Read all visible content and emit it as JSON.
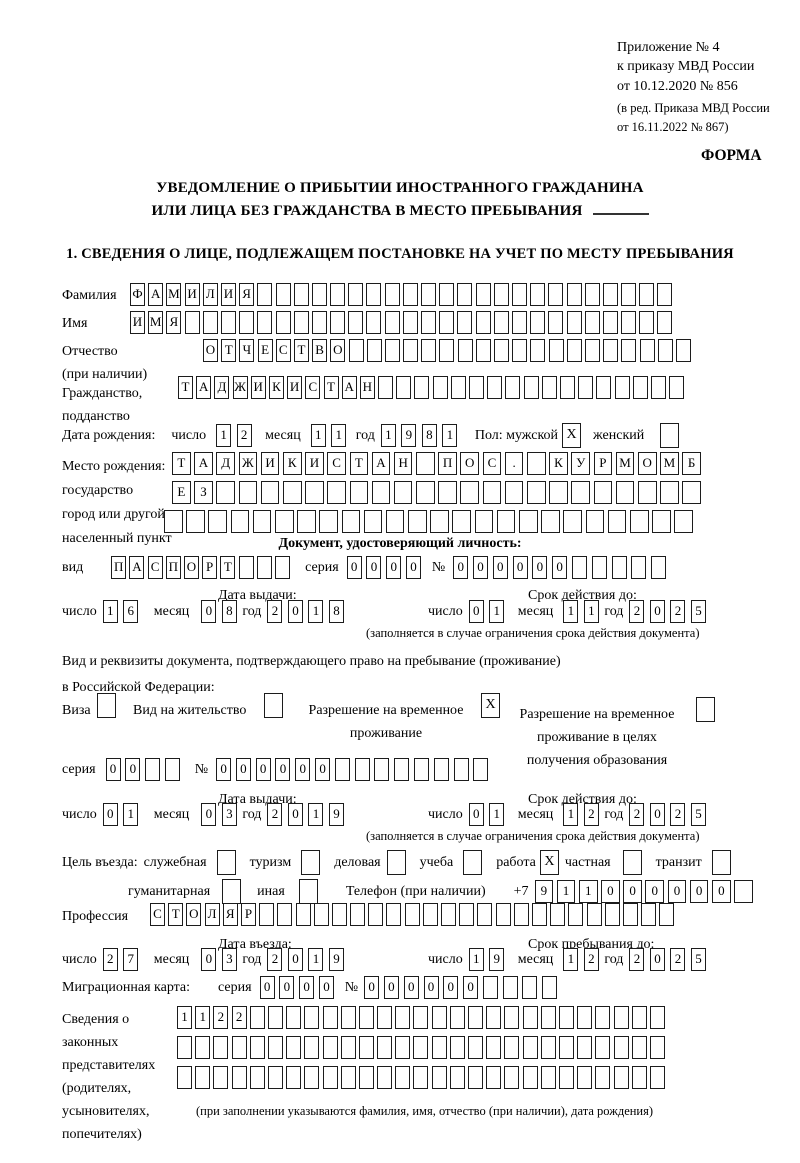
{
  "header": {
    "ref_lines": [
      "Приложение № 4",
      "к приказу МВД России",
      "от 10.12.2020 № 856"
    ],
    "ref_lines_small": [
      "(в ред. Приказа МВД России",
      "от 16.11.2022 № 867)"
    ],
    "form_word": "ФОРМА",
    "title_line1": "УВЕДОМЛЕНИЕ О ПРИБЫТИИ ИНОСТРАННОГО ГРАЖДАНИНА",
    "title_line2": "ИЛИ ЛИЦА БЕЗ ГРАЖДАНСТВА В МЕСТО ПРЕБЫВАНИЯ",
    "section1_title": "1. СВЕДЕНИЯ О ЛИЦЕ, ПОДЛЕЖАЩЕМ ПОСТАНОВКЕ НА УЧЕТ ПО МЕСТУ ПРЕБЫВАНИЯ"
  },
  "shared": {
    "day": "число",
    "month": "месяц",
    "year": "год",
    "series": "серия",
    "number": "№",
    "issue_title": "Дата выдачи:",
    "valid_title": "Срок действия до:",
    "validity_note": "(заполняется в случае ограничения срока действия документа)"
  },
  "person": {
    "surname": {
      "label": "Фамилия",
      "value": "ФАМИЛИЯ",
      "count": 30
    },
    "name": {
      "label": "Имя",
      "value": "ИМЯ",
      "count": 30
    },
    "patronymic": {
      "label1": "Отчество",
      "label2": "(при наличии)",
      "value": "ОТЧЕСТВО",
      "count": 27
    },
    "citizenship": {
      "label1": "Гражданство,",
      "label2": "подданство",
      "value": "ТАДЖИКИСТАН",
      "count": 28
    },
    "birth_date": {
      "label": "Дата рождения:",
      "day": "12",
      "month": "11",
      "year": "1981"
    },
    "sex": {
      "label": "Пол: мужской",
      "male_mark": "X",
      "female_label": "женский",
      "female_mark": ""
    },
    "birth_place": {
      "label1": "Место рождения:",
      "label2": "государство",
      "label3": "город или другой",
      "label4": "населенный пункт",
      "row1": {
        "value": "ТАДЖИКИСТАН ПОС. КУРМОМБ",
        "count": 24
      },
      "row2": {
        "value": "ЕЗ",
        "count": 24
      },
      "row3": {
        "value": "",
        "count": 24
      }
    }
  },
  "identity_doc": {
    "section_title": "Документ, удостоверяющий личность:",
    "kind_label": "вид",
    "kind": {
      "value": "ПАСПОРТ",
      "count": 10
    },
    "series": {
      "value": "0000",
      "count": 4
    },
    "number": {
      "value": "000000",
      "count": 11
    },
    "issue": {
      "day": "16",
      "month": "08",
      "year": "2018"
    },
    "valid": {
      "day": "01",
      "month": "11",
      "year": "2025"
    }
  },
  "residence_doc": {
    "intro_line1": "Вид и реквизиты документа, подтверждающего право на пребывание (проживание)",
    "intro_line2": "в Российской Федерации:",
    "options": [
      {
        "label": "Виза",
        "mark": ""
      },
      {
        "label": "Вид на жительство",
        "mark": ""
      },
      {
        "label": "Разрешение на временное проживание",
        "mark": "X"
      },
      {
        "label": "Разрешение на временное проживание в целях получения образования",
        "mark": ""
      }
    ],
    "series": {
      "value": "00",
      "count": 4
    },
    "number": {
      "value": "000000",
      "count": 14
    },
    "issue": {
      "day": "01",
      "month": "03",
      "year": "2019"
    },
    "valid": {
      "day": "01",
      "month": "12",
      "year": "2025"
    }
  },
  "entry_purpose": {
    "label": "Цель въезда:",
    "options": [
      {
        "label": "служебная",
        "mark": ""
      },
      {
        "label": "туризм",
        "mark": ""
      },
      {
        "label": "деловая",
        "mark": ""
      },
      {
        "label": "учеба",
        "mark": ""
      },
      {
        "label": "работа",
        "mark": "X"
      },
      {
        "label": "частная",
        "mark": ""
      },
      {
        "label": "транзит",
        "mark": ""
      },
      {
        "label": "гуманитарная",
        "mark": ""
      },
      {
        "label": "иная",
        "mark": ""
      }
    ],
    "phone_label": "Телефон (при наличии)",
    "phone_prefix": "+7",
    "phone": {
      "value": "911000000",
      "count": 10
    }
  },
  "profession": {
    "label": "Профессия",
    "value": "СТОЛЯР",
    "count": 29
  },
  "entry_dates": {
    "entry_title": "Дата въезда:",
    "stay_title": "Срок пребывания до:",
    "entry": {
      "day": "27",
      "month": "03",
      "year": "2019"
    },
    "stay": {
      "day": "19",
      "month": "12",
      "year": "2025"
    }
  },
  "migration_card": {
    "label": "Миграционная карта:",
    "series": {
      "value": "0000",
      "count": 4
    },
    "number": {
      "value": "000000",
      "count": 10
    }
  },
  "representatives": {
    "label1": "Сведения о",
    "label2": "законных",
    "label3": "представителях",
    "label4": "(родителях,",
    "label5": "усыновителях,",
    "label6": "попечителях)",
    "row1": {
      "value": "1122",
      "count": 27
    },
    "row2": {
      "value": "",
      "count": 27
    },
    "row3": {
      "value": "",
      "count": 27
    },
    "note": "(при заполнении указываются фамилия, имя, отчество (при наличии), дата рождения)"
  }
}
